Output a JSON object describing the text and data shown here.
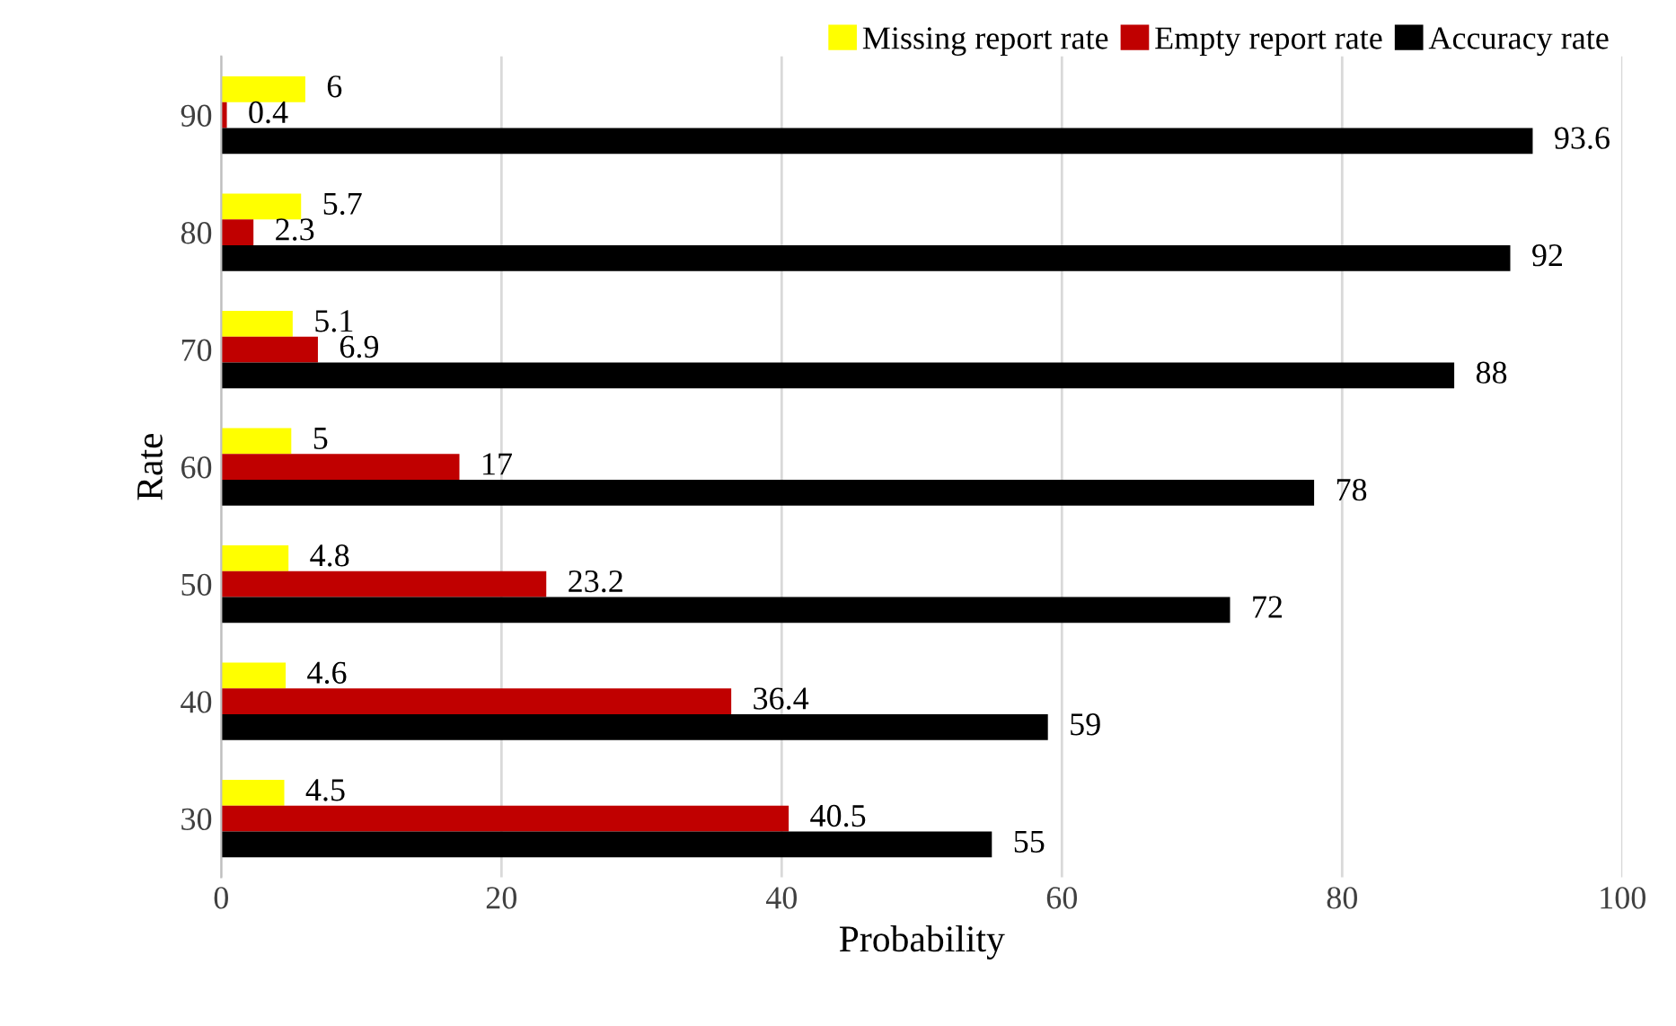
{
  "chart_data": {
    "type": "bar",
    "orientation": "horizontal",
    "xlabel": "Probability",
    "ylabel": "Rate",
    "categories": [
      "90",
      "80",
      "70",
      "60",
      "50",
      "40",
      "30"
    ],
    "series": [
      {
        "name": "Missing report rate",
        "color": "#ffff00",
        "values": [
          6,
          5.7,
          5.1,
          5,
          4.8,
          4.6,
          4.5
        ]
      },
      {
        "name": "Empty report rate",
        "color": "#c00000",
        "values": [
          0.4,
          2.3,
          6.9,
          17,
          23.2,
          36.4,
          40.5
        ]
      },
      {
        "name": "Accuracy rate",
        "color": "#000000",
        "values": [
          93.6,
          92,
          88,
          78,
          72,
          59,
          55
        ]
      }
    ],
    "xlim": [
      0,
      100
    ],
    "xticks": [
      0,
      20,
      40,
      60,
      80,
      100
    ],
    "grid": "x",
    "legend": "top right",
    "data_labels": true
  }
}
